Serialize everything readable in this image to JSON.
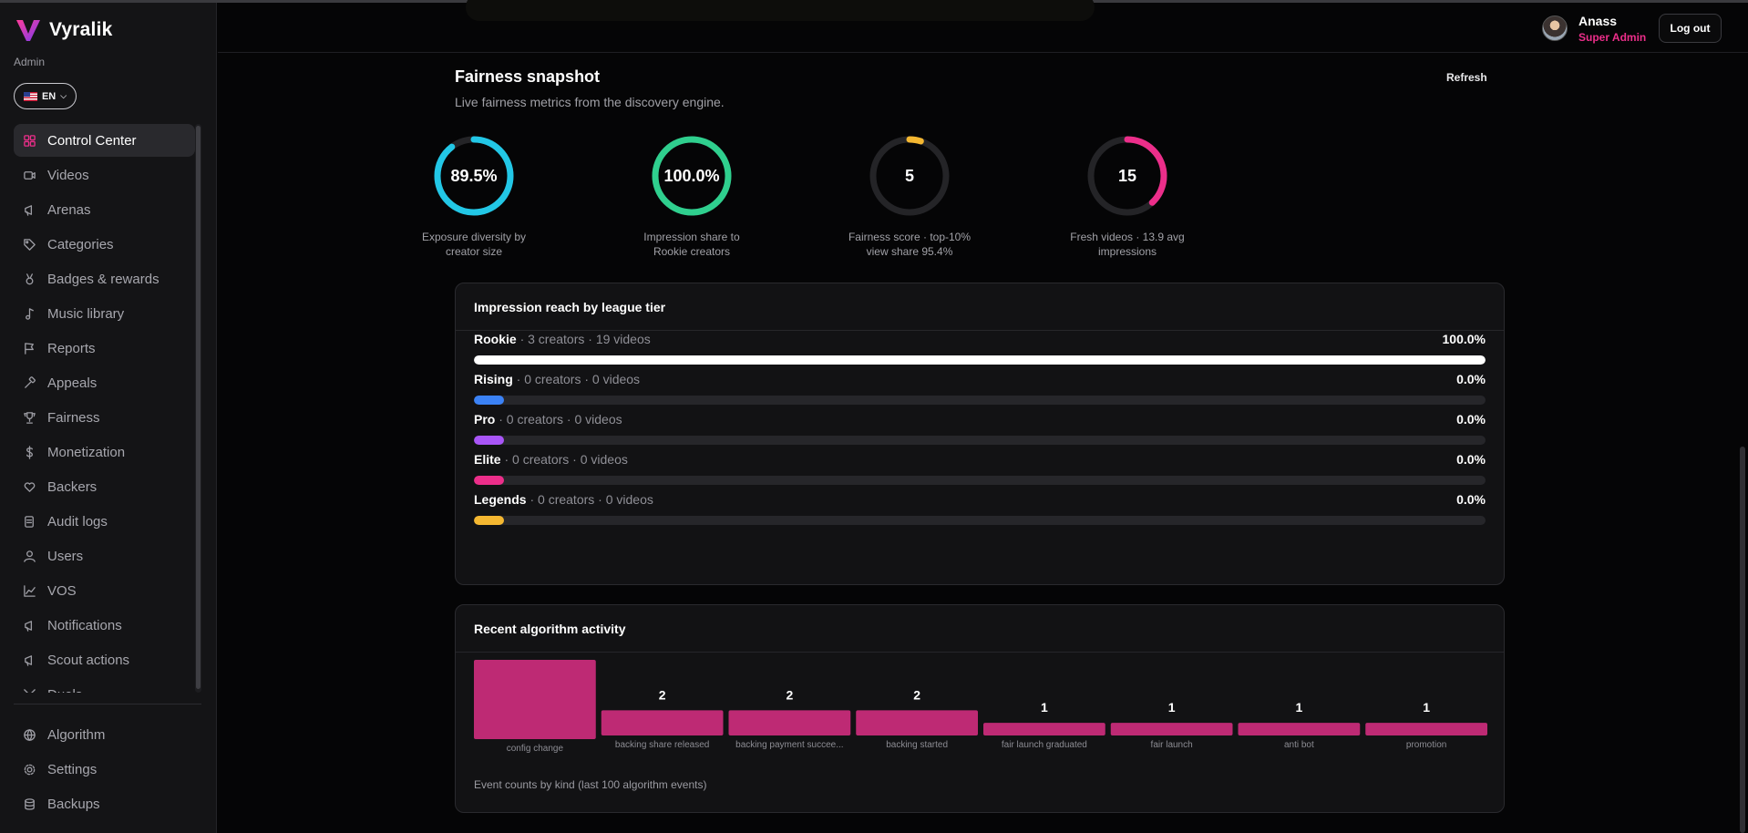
{
  "app": {
    "name": "Vyralik",
    "role_tag": "Admin",
    "language": "EN"
  },
  "sidebar": {
    "items": [
      {
        "label": "Control Center",
        "icon": "grid-icon",
        "active": true
      },
      {
        "label": "Videos",
        "icon": "video-icon"
      },
      {
        "label": "Arenas",
        "icon": "megaphone-icon"
      },
      {
        "label": "Categories",
        "icon": "tag-icon"
      },
      {
        "label": "Badges & rewards",
        "icon": "medal-icon"
      },
      {
        "label": "Music library",
        "icon": "music-note-icon"
      },
      {
        "label": "Reports",
        "icon": "flag-icon"
      },
      {
        "label": "Appeals",
        "icon": "gavel-icon"
      },
      {
        "label": "Fairness",
        "icon": "trophy-icon"
      },
      {
        "label": "Monetization",
        "icon": "dollar-icon"
      },
      {
        "label": "Backers",
        "icon": "heart-hand-icon"
      },
      {
        "label": "Audit logs",
        "icon": "scroll-icon"
      },
      {
        "label": "Users",
        "icon": "user-icon"
      },
      {
        "label": "VOS",
        "icon": "chart-line-icon"
      },
      {
        "label": "Notifications",
        "icon": "megaphone-icon"
      },
      {
        "label": "Scout actions",
        "icon": "megaphone-icon"
      },
      {
        "label": "Duels",
        "icon": "swords-icon"
      }
    ],
    "bottom_items": [
      {
        "label": "Algorithm",
        "icon": "globe-icon"
      },
      {
        "label": "Settings",
        "icon": "gear-icon"
      },
      {
        "label": "Backups",
        "icon": "database-icon"
      }
    ]
  },
  "header": {
    "user_name": "Anass",
    "user_role": "Super Admin",
    "logout_label": "Log out"
  },
  "fairness": {
    "title": "Fairness snapshot",
    "subtitle": "Live fairness metrics from the discovery engine.",
    "refresh_label": "Refresh",
    "gauges": [
      {
        "value": "89.5%",
        "fraction": 0.895,
        "color": "#22c7e6",
        "label": "Exposure diversity by creator size"
      },
      {
        "value": "100.0%",
        "fraction": 1.0,
        "color": "#2fcf8e",
        "label": "Impression share to Rookie creators"
      },
      {
        "value": "5",
        "fraction": 0.05,
        "color": "#f4b731",
        "label": "Fairness score · top-10% view share 95.4%"
      },
      {
        "value": "15",
        "fraction": 0.38,
        "color": "#ec2e8a",
        "label": "Fresh videos · 13.9 avg impressions"
      }
    ]
  },
  "reach": {
    "title": "Impression reach by league tier",
    "tiers": [
      {
        "name": "Rookie",
        "meta": " · 3 creators · 19 videos",
        "pct": "100.0%",
        "fraction": 1.0,
        "color": "#ffffff"
      },
      {
        "name": "Rising",
        "meta": " · 0 creators · 0 videos",
        "pct": "0.0%",
        "fraction": 0.0,
        "color": "#3b82f6"
      },
      {
        "name": "Pro",
        "meta": " · 0 creators · 0 videos",
        "pct": "0.0%",
        "fraction": 0.0,
        "color": "#a855f7"
      },
      {
        "name": "Elite",
        "meta": " · 0 creators · 0 videos",
        "pct": "0.0%",
        "fraction": 0.0,
        "color": "#ec2e8a"
      },
      {
        "name": "Legends",
        "meta": " · 0 creators · 0 videos",
        "pct": "0.0%",
        "fraction": 0.0,
        "color": "#f4b731"
      }
    ]
  },
  "activity": {
    "title": "Recent algorithm activity",
    "footnote": "Event counts by kind (last 100 algorithm events)",
    "bar_color": "#be2a74"
  },
  "chart_data": {
    "type": "bar",
    "title": "Recent algorithm activity",
    "categories": [
      "config change",
      "backing share released",
      "backing payment succee...",
      "backing started",
      "fair launch graduated",
      "fair launch",
      "anti bot",
      "promotion"
    ],
    "values": [
      6,
      2,
      2,
      2,
      1,
      1,
      1,
      1
    ],
    "xlabel": "",
    "ylabel": "",
    "grid": false
  }
}
